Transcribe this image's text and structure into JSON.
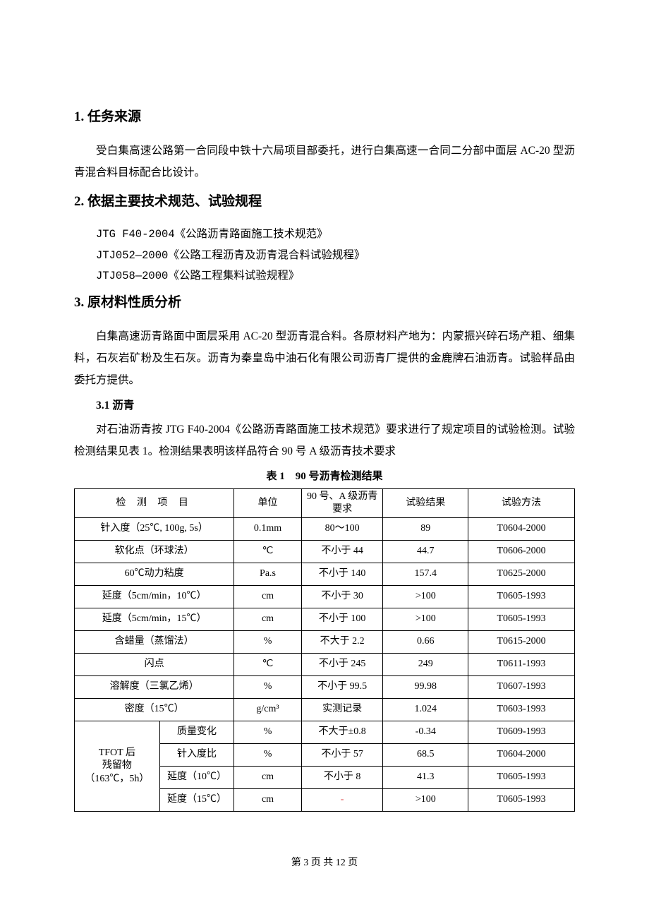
{
  "sections": {
    "s1": {
      "num": "1.",
      "title": "任务来源"
    },
    "s1_para": "受白集高速公路第一合同段中铁十六局项目部委托，进行白集高速一合同二分部中面层 AC-20 型沥青混合料目标配合比设计。",
    "s2": {
      "num": "2.",
      "title": "依据主要技术规范、试验规程"
    },
    "s2_specs": [
      "JTG F40-2004《公路沥青路面施工技术规范》",
      "JTJ052—2000《公路工程沥青及沥青混合料试验规程》",
      "JTJ058—2000《公路工程集料试验规程》"
    ],
    "s3": {
      "num": "3.",
      "title": "原材料性质分析"
    },
    "s3_para": "白集高速沥青路面中面层采用 AC-20 型沥青混合料。各原材料产地为：内蒙振兴碎石场产粗、细集料，石灰岩矿粉及生石灰。沥青为秦皇岛中油石化有限公司沥青厂提供的金鹿牌石油沥青。试验样品由委托方提供。",
    "s3_1_heading": "3.1 沥青",
    "s3_1_para": "对石油沥青按 JTG F40-2004《公路沥青路面施工技术规范》要求进行了规定项目的试验检测。试验检测结果见表 1。检测结果表明该样品符合 90 号 A 级沥青技术要求"
  },
  "table": {
    "caption": "表 1　90 号沥青检测结果",
    "header": {
      "c1": "检 测 项 目",
      "c2": "单位",
      "c3": "90 号、A 级沥青要求",
      "c4": "试验结果",
      "c5": "试验方法"
    },
    "rows": [
      {
        "item": "针入度（25℃, 100g, 5s）",
        "unit": "0.1mm",
        "req": "80～100",
        "res": "89",
        "method": "T0604-2000"
      },
      {
        "item": "软化点（环球法）",
        "unit": "℃",
        "req": "不小于 44",
        "res": "44.7",
        "method": "T0606-2000"
      },
      {
        "item": "60℃动力粘度",
        "unit": "Pa.s",
        "req": "不小于 140",
        "res": "157.4",
        "method": "T0625-2000"
      },
      {
        "item": "延度（5cm/min，10℃）",
        "unit": "cm",
        "req": "不小于 30",
        "res": ">100",
        "method": "T0605-1993"
      },
      {
        "item": "延度（5cm/min，15℃）",
        "unit": "cm",
        "req": "不小于 100",
        "res": ">100",
        "method": "T0605-1993"
      },
      {
        "item": "含蜡量（蒸馏法）",
        "unit": "%",
        "req": "不大于 2.2",
        "res": "0.66",
        "method": "T0615-2000"
      },
      {
        "item": "闪点",
        "unit": "℃",
        "req": "不小于 245",
        "res": "249",
        "method": "T0611-1993"
      },
      {
        "item": "溶解度（三氯乙烯）",
        "unit": "%",
        "req": "不小于 99.5",
        "res": "99.98",
        "method": "T0607-1993"
      },
      {
        "item": "密度（15℃）",
        "unit": "g/cm³",
        "req": "实测记录",
        "res": "1.024",
        "method": "T0603-1993"
      }
    ],
    "group": {
      "label": "TFOT 后\n残留物\n（163℃，5h）",
      "sub": [
        {
          "item": "质量变化",
          "unit": "%",
          "req": "不大于±0.8",
          "res": "-0.34",
          "method": "T0609-1993"
        },
        {
          "item": "针入度比",
          "unit": "%",
          "req": "不小于 57",
          "res": "68.5",
          "method": "T0604-2000"
        },
        {
          "item": "延度（10℃）",
          "unit": "cm",
          "req": "不小于 8",
          "res": "41.3",
          "method": "T0605-1993"
        },
        {
          "item": "延度（15℃）",
          "unit": "cm",
          "req": "-",
          "res": ">100",
          "method": "T0605-1993"
        }
      ]
    }
  },
  "footer": "第 3 页 共 12 页"
}
